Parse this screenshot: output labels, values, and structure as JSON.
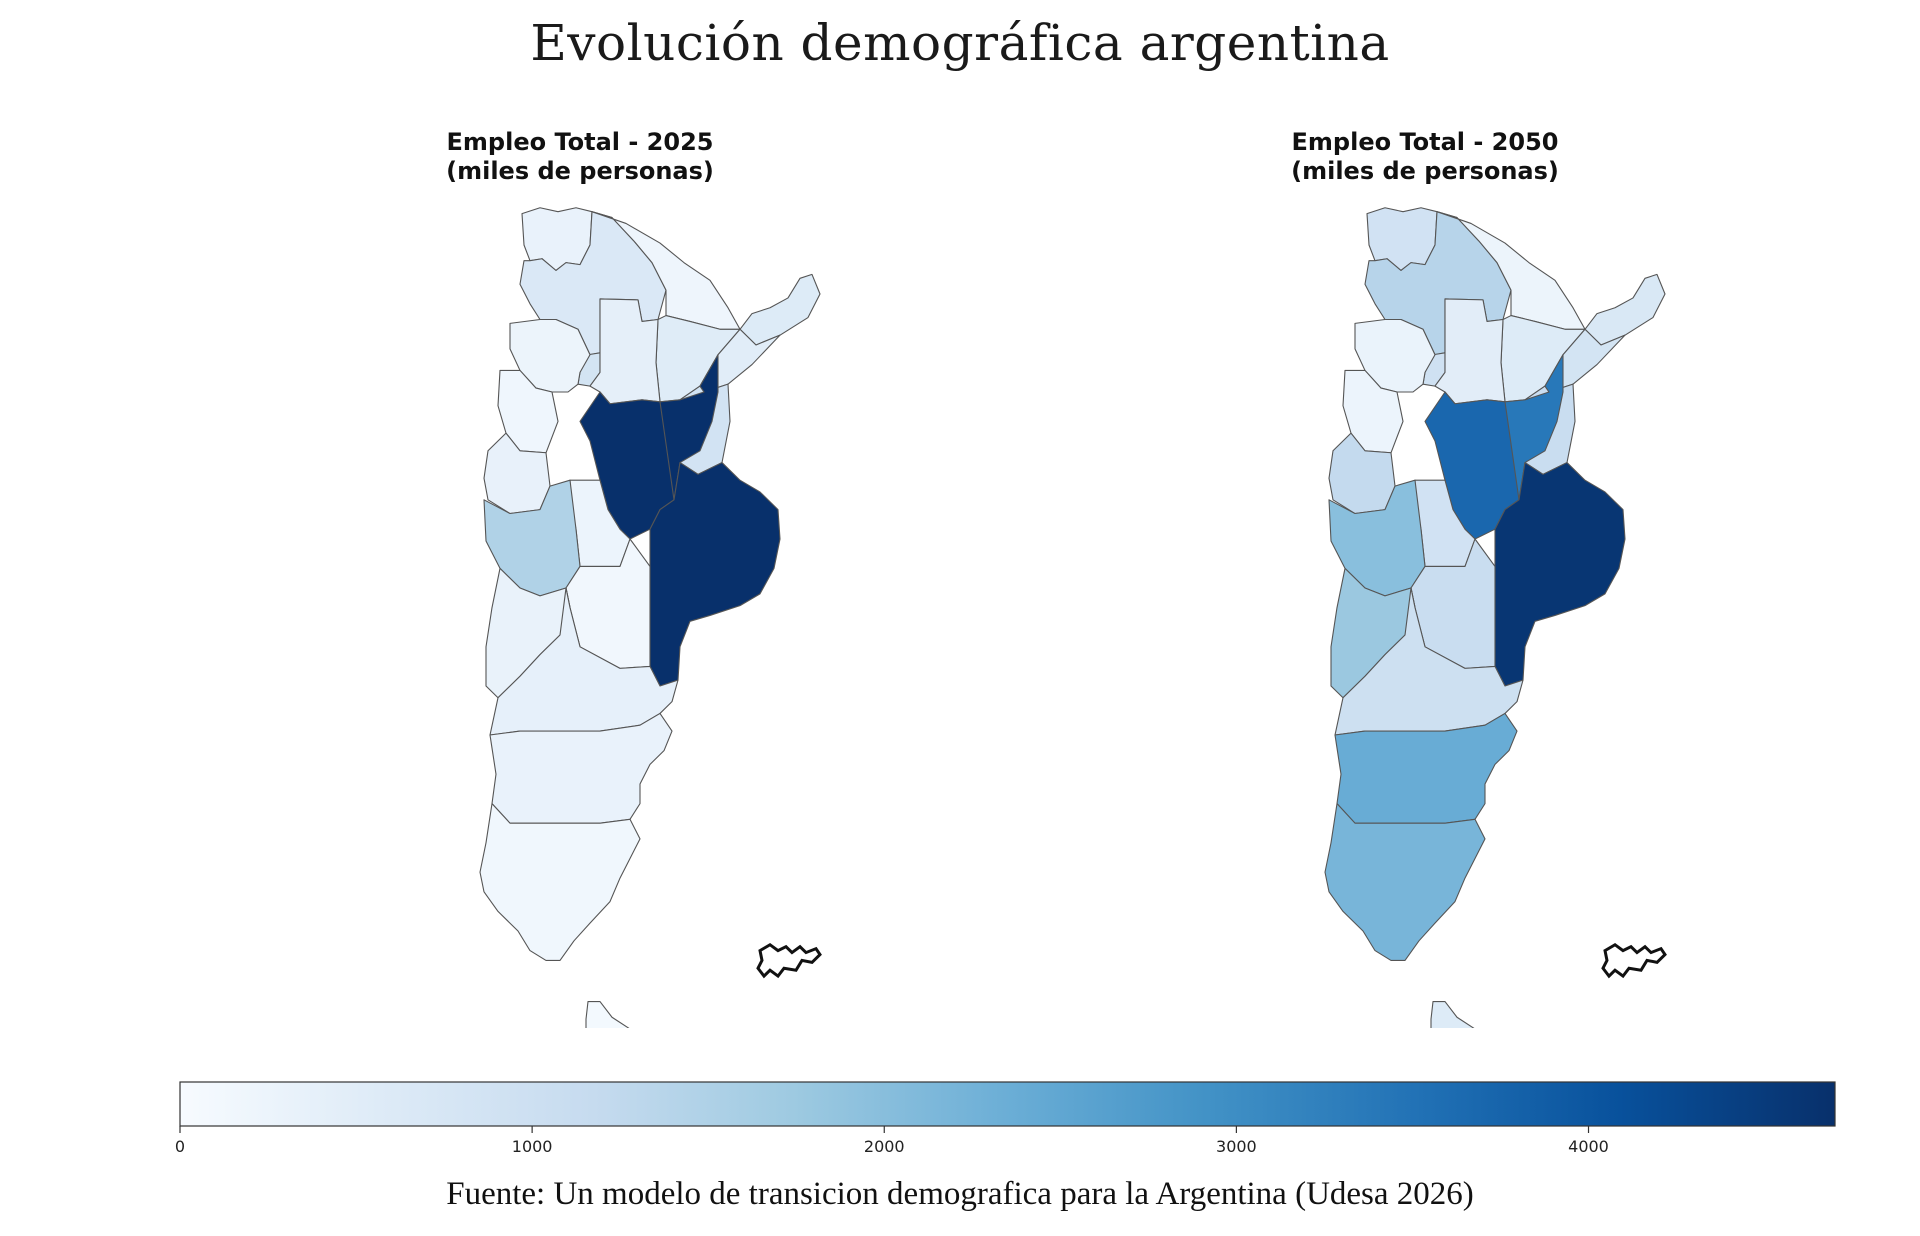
{
  "title": "Evolución demográfica argentina",
  "source": "Fuente: Un modelo de transicion demografica para la Argentina (Udesa 2026)",
  "colors": {
    "scale_low": "#f7fbff",
    "scale_mid": "#6baed6",
    "scale_high": "#08306b",
    "border": "#555555",
    "islands": "#111111"
  },
  "colorbar": {
    "min": 0,
    "max": 4700,
    "ticks": [
      {
        "value": 0,
        "label": "0"
      },
      {
        "value": 1000,
        "label": "1000"
      },
      {
        "value": 2000,
        "label": "2000"
      },
      {
        "value": 3000,
        "label": "3000"
      },
      {
        "value": 4000,
        "label": "4000"
      }
    ]
  },
  "maps": [
    {
      "title_line1": "Empleo Total - 2025",
      "title_line2": "(miles de personas)",
      "provinces": {
        "jujuy": 320,
        "salta": 680,
        "tucuman": 860,
        "catamarca": 260,
        "santiago-del-estero": 430,
        "formosa": 220,
        "chaco": 560,
        "misiones": 600,
        "corrientes": 520,
        "la-rioja": 180,
        "san-juan": 360,
        "cordoba": 4700,
        "santa-fe": 4700,
        "entre-rios": 880,
        "mendoza": 1500,
        "san-luis": 250,
        "buenos-aires": 4700,
        "la-pampa": 150,
        "neuquen": 340,
        "rio-negro": 400,
        "chubut": 330,
        "santa-cruz": 160,
        "tierra-del-fuego": 90
      }
    },
    {
      "title_line1": "Empleo Total - 2050",
      "title_line2": "(miles de personas)",
      "provinces": {
        "jujuy": 900,
        "salta": 1400,
        "tucuman": 950,
        "catamarca": 300,
        "santiago-del-estero": 500,
        "formosa": 260,
        "chaco": 600,
        "misiones": 700,
        "corrientes": 850,
        "la-rioja": 250,
        "san-juan": 1200,
        "cordoba": 3700,
        "santa-fe": 3400,
        "entre-rios": 1100,
        "mendoza": 2000,
        "san-luis": 900,
        "buenos-aires": 4600,
        "la-pampa": 1100,
        "neuquen": 1800,
        "rio-negro": 1000,
        "chubut": 2400,
        "santa-cruz": 2200,
        "tierra-del-fuego": 600
      }
    }
  ]
}
